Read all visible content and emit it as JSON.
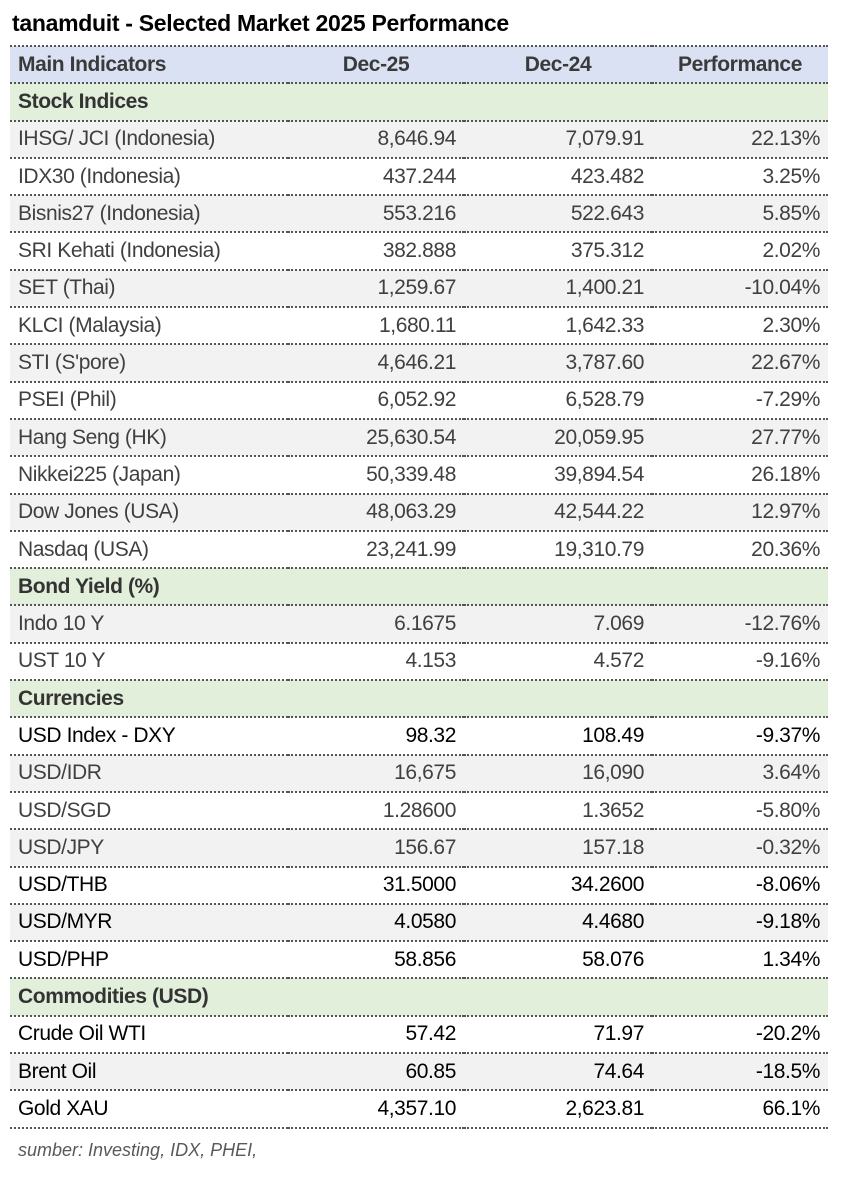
{
  "title": "tanamduit - Selected Market 2025 Performance",
  "header": [
    "Main Indicators",
    "Dec-25",
    "Dec-24",
    "Performance"
  ],
  "sections": [
    {
      "name": "Stock Indices",
      "rows": [
        {
          "label": "IHSG/ JCI (Indonesia)",
          "dec25": "8,646.94",
          "dec24": "7,079.91",
          "perf": "22.13%"
        },
        {
          "label": "IDX30 (Indonesia)",
          "dec25": "437.244",
          "dec24": "423.482",
          "perf": "3.25%"
        },
        {
          "label": "Bisnis27 (Indonesia)",
          "dec25": "553.216",
          "dec24": "522.643",
          "perf": "5.85%"
        },
        {
          "label": "SRI Kehati (Indonesia)",
          "dec25": "382.888",
          "dec24": "375.312",
          "perf": "2.02%"
        },
        {
          "label": "SET (Thai)",
          "dec25": "1,259.67",
          "dec24": "1,400.21",
          "perf": "-10.04%"
        },
        {
          "label": "KLCI (Malaysia)",
          "dec25": "1,680.11",
          "dec24": "1,642.33",
          "perf": "2.30%"
        },
        {
          "label": "STI (S'pore)",
          "dec25": "4,646.21",
          "dec24": "3,787.60",
          "perf": "22.67%"
        },
        {
          "label": "PSEI (Phil)",
          "dec25": "6,052.92",
          "dec24": "6,528.79",
          "perf": "-7.29%"
        },
        {
          "label": "Hang Seng (HK)",
          "dec25": "25,630.54",
          "dec24": "20,059.95",
          "perf": "27.77%"
        },
        {
          "label": "Nikkei225 (Japan)",
          "dec25": "50,339.48",
          "dec24": "39,894.54",
          "perf": "26.18%"
        },
        {
          "label": "Dow Jones (USA)",
          "dec25": "48,063.29",
          "dec24": "42,544.22",
          "perf": "12.97%"
        },
        {
          "label": "Nasdaq (USA)",
          "dec25": "23,241.99",
          "dec24": "19,310.79",
          "perf": "20.36%"
        }
      ]
    },
    {
      "name": "Bond Yield (%)",
      "rows": [
        {
          "label": "Indo 10 Y",
          "dec25": "6.1675",
          "dec24": "7.069",
          "perf": "-12.76%"
        },
        {
          "label": "UST 10 Y",
          "dec25": "4.153",
          "dec24": "4.572",
          "perf": "-9.16%"
        }
      ]
    },
    {
      "name": "Currencies",
      "rows": [
        {
          "label": "USD Index - DXY",
          "dec25": "98.32",
          "dec24": "108.49",
          "perf": "-9.37%",
          "dark": true
        },
        {
          "label": "USD/IDR",
          "dec25": "16,675",
          "dec24": "16,090",
          "perf": "3.64%"
        },
        {
          "label": "USD/SGD",
          "dec25": "1.28600",
          "dec24": "1.3652",
          "perf": "-5.80%"
        },
        {
          "label": "USD/JPY",
          "dec25": "156.67",
          "dec24": "157.18",
          "perf": "-0.32%"
        },
        {
          "label": "USD/THB",
          "dec25": "31.5000",
          "dec24": "34.2600",
          "perf": "-8.06%",
          "dark": true
        },
        {
          "label": "USD/MYR",
          "dec25": "4.0580",
          "dec24": "4.4680",
          "perf": "-9.18%",
          "dark": true
        },
        {
          "label": "USD/PHP",
          "dec25": "58.856",
          "dec24": "58.076",
          "perf": "1.34%",
          "dark": true
        }
      ]
    },
    {
      "name": "Commodities (USD)",
      "rows": [
        {
          "label": "Crude Oil WTI",
          "dec25": "57.42",
          "dec24": "71.97",
          "perf": "-20.2%",
          "dark": true
        },
        {
          "label": "Brent Oil",
          "dec25": "60.85",
          "dec24": "74.64",
          "perf": "-18.5%",
          "dark": true
        },
        {
          "label": "Gold XAU",
          "dec25": "4,357.10",
          "dec24": "2,623.81",
          "perf": "66.1%",
          "dark": true
        }
      ]
    }
  ],
  "source": "sumber: Investing, IDX, PHEI,",
  "colors": {
    "header_bg": "#d9e1f2",
    "section_bg": "#e2efda",
    "alt_row_bg": "#f2f2f2"
  }
}
